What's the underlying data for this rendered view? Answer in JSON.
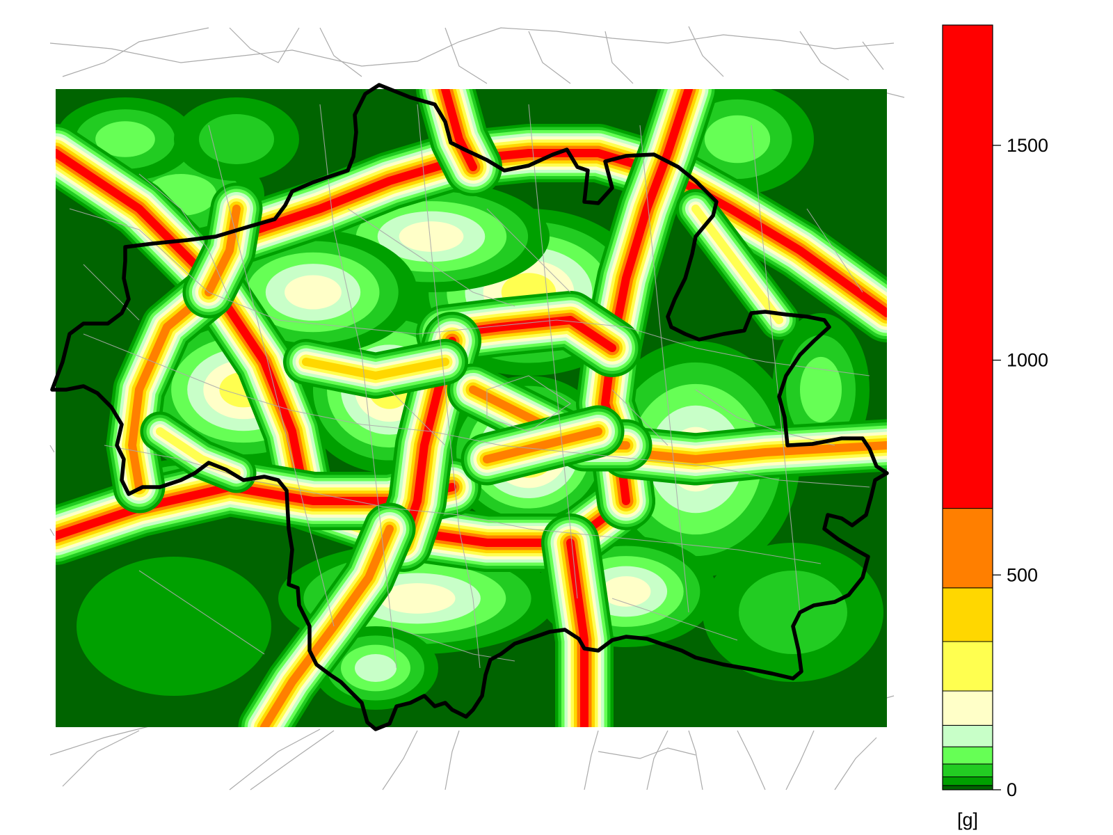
{
  "legend": {
    "unit": "[g]",
    "ticks": [
      {
        "value": 0,
        "label": "0"
      },
      {
        "value": 500,
        "label": "500"
      },
      {
        "value": 1000,
        "label": "1000"
      },
      {
        "value": 1500,
        "label": "1500"
      }
    ],
    "scale_max": 1780,
    "bins": [
      {
        "from": 0,
        "to": 10,
        "color": "#006400"
      },
      {
        "from": 10,
        "to": 30,
        "color": "#00a000"
      },
      {
        "from": 30,
        "to": 60,
        "color": "#22cc22"
      },
      {
        "from": 60,
        "to": 100,
        "color": "#66ff55"
      },
      {
        "from": 100,
        "to": 150,
        "color": "#c8ffc8"
      },
      {
        "from": 150,
        "to": 230,
        "color": "#ffffc8"
      },
      {
        "from": 230,
        "to": 345,
        "color": "#ffff50"
      },
      {
        "from": 345,
        "to": 470,
        "color": "#ffd700"
      },
      {
        "from": 470,
        "to": 655,
        "color": "#ff7f00"
      },
      {
        "from": 655,
        "to": 1780,
        "color": "#ff0000"
      }
    ]
  },
  "map": {
    "background_color": "#008000",
    "road_color": "#aaaaaa",
    "boundary_color": "#000000"
  }
}
